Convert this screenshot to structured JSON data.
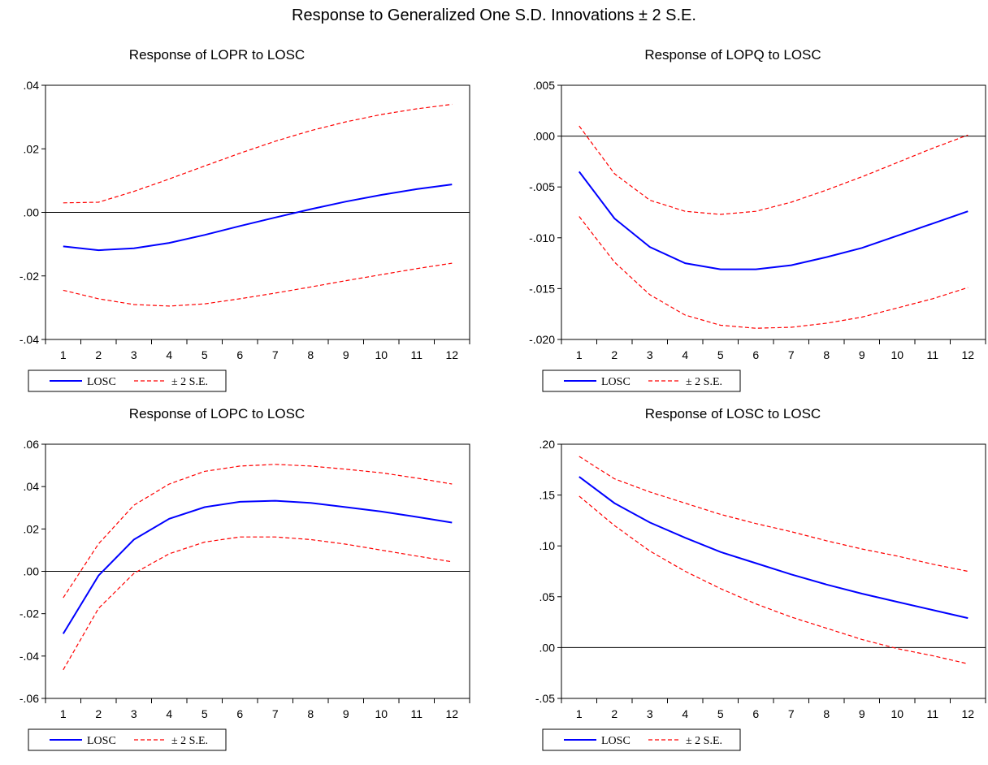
{
  "main_title": "Response to Generalized One S.D. Innovations ± 2 S.E.",
  "legend": {
    "series_label": "LOSC",
    "band_label": "± 2 S.E."
  },
  "colors": {
    "response": "#0000ff",
    "band": "#ff0000",
    "zero_line": "#000000"
  },
  "chart_data": [
    {
      "type": "line",
      "title": "Response of LOPR to LOSC",
      "x": [
        1,
        2,
        3,
        4,
        5,
        6,
        7,
        8,
        9,
        10,
        11,
        12
      ],
      "ylim": [
        -0.04,
        0.04
      ],
      "yticks": [
        -0.04,
        -0.02,
        0.0,
        0.02,
        0.04
      ],
      "ytick_labels": [
        "-.04",
        "-.02",
        ".00",
        ".02",
        ".04"
      ],
      "series": [
        {
          "name": "LOSC",
          "values": [
            -0.0107,
            -0.0119,
            -0.0113,
            -0.0096,
            -0.0071,
            -0.0043,
            -0.0016,
            0.001,
            0.0034,
            0.0055,
            0.0073,
            0.0088
          ]
        },
        {
          "name": "± 2 S.E.",
          "values": [
            0.003,
            0.0032,
            0.0066,
            0.0105,
            0.0146,
            0.0186,
            0.0224,
            0.0257,
            0.0285,
            0.0308,
            0.0326,
            0.034
          ]
        },
        {
          "values": [
            -0.0245,
            -0.0272,
            -0.029,
            -0.0295,
            -0.0288,
            -0.0272,
            -0.0254,
            -0.0235,
            -0.0215,
            -0.0196,
            -0.0177,
            -0.016
          ]
        }
      ]
    },
    {
      "type": "line",
      "title": "Response of LOPQ to LOSC",
      "x": [
        1,
        2,
        3,
        4,
        5,
        6,
        7,
        8,
        9,
        10,
        11,
        12
      ],
      "ylim": [
        -0.02,
        0.005
      ],
      "yticks": [
        -0.02,
        -0.015,
        -0.01,
        -0.005,
        0.0,
        0.005
      ],
      "ytick_labels": [
        "-.020",
        "-.015",
        "-.010",
        "-.005",
        ".000",
        ".005"
      ],
      "series": [
        {
          "name": "LOSC",
          "values": [
            -0.0035,
            -0.0081,
            -0.0109,
            -0.0125,
            -0.0131,
            -0.0131,
            -0.0127,
            -0.0119,
            -0.011,
            -0.0098,
            -0.0086,
            -0.0074
          ]
        },
        {
          "name": "± 2 S.E.",
          "values": [
            0.001,
            -0.0037,
            -0.0063,
            -0.0074,
            -0.0077,
            -0.0074,
            -0.0065,
            -0.0053,
            -0.004,
            -0.0026,
            -0.0012,
            0.0001
          ]
        },
        {
          "values": [
            -0.0079,
            -0.0124,
            -0.0156,
            -0.0176,
            -0.0186,
            -0.0189,
            -0.0188,
            -0.0184,
            -0.0178,
            -0.0169,
            -0.016,
            -0.0149
          ]
        }
      ]
    },
    {
      "type": "line",
      "title": "Response of LOPC to LOSC",
      "x": [
        1,
        2,
        3,
        4,
        5,
        6,
        7,
        8,
        9,
        10,
        11,
        12
      ],
      "ylim": [
        -0.06,
        0.06
      ],
      "yticks": [
        -0.06,
        -0.04,
        -0.02,
        0.0,
        0.02,
        0.04,
        0.06
      ],
      "ytick_labels": [
        "-.06",
        "-.04",
        "-.02",
        ".00",
        ".02",
        ".04",
        ".06"
      ],
      "series": [
        {
          "name": "LOSC",
          "values": [
            -0.0295,
            -0.002,
            0.015,
            0.0248,
            0.0303,
            0.0328,
            0.0333,
            0.0323,
            0.0303,
            0.0282,
            0.0257,
            0.023
          ]
        },
        {
          "name": "± 2 S.E.",
          "values": [
            -0.0125,
            0.013,
            0.0312,
            0.0412,
            0.0472,
            0.0497,
            0.0505,
            0.0497,
            0.0482,
            0.0465,
            0.044,
            0.0412
          ]
        },
        {
          "values": [
            -0.0465,
            -0.0175,
            -0.001,
            0.0083,
            0.0138,
            0.0162,
            0.0162,
            0.015,
            0.0128,
            0.01,
            0.0072,
            0.0045
          ]
        }
      ]
    },
    {
      "type": "line",
      "title": "Response of LOSC to LOSC",
      "x": [
        1,
        2,
        3,
        4,
        5,
        6,
        7,
        8,
        9,
        10,
        11,
        12
      ],
      "ylim": [
        -0.05,
        0.2
      ],
      "yticks": [
        -0.05,
        0.0,
        0.05,
        0.1,
        0.15,
        0.2
      ],
      "ytick_labels": [
        "-.05",
        ".00",
        ".05",
        ".10",
        ".15",
        ".20"
      ],
      "series": [
        {
          "name": "LOSC",
          "values": [
            0.168,
            0.142,
            0.123,
            0.108,
            0.094,
            0.083,
            0.072,
            0.062,
            0.053,
            0.045,
            0.037,
            0.029
          ]
        },
        {
          "name": "± 2 S.E.",
          "values": [
            0.188,
            0.166,
            0.153,
            0.142,
            0.131,
            0.122,
            0.114,
            0.105,
            0.097,
            0.09,
            0.082,
            0.075
          ]
        },
        {
          "values": [
            0.149,
            0.12,
            0.095,
            0.075,
            0.058,
            0.043,
            0.03,
            0.019,
            0.008,
            -0.001,
            -0.008,
            -0.016
          ]
        }
      ]
    }
  ]
}
